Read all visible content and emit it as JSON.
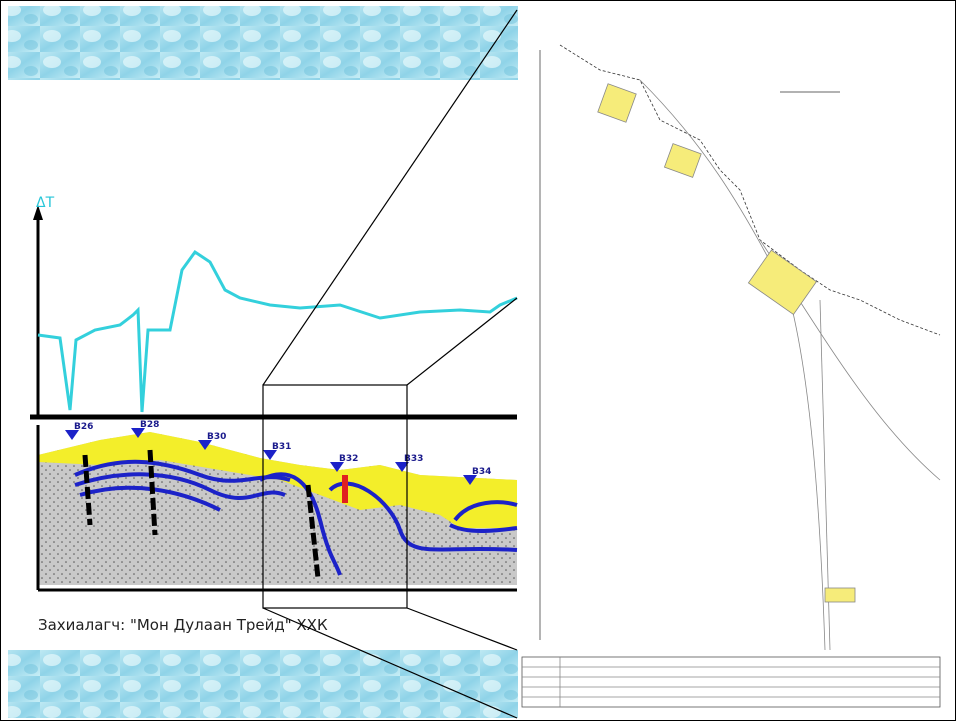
{
  "gravity_axis_label": "ΔT",
  "boreholes": [
    "B26",
    "B28",
    "B30",
    "B31",
    "B32",
    "B33",
    "B34"
  ],
  "caption": "Захиалагч: \"Мон Дулаан Трейд\" ХХК"
}
